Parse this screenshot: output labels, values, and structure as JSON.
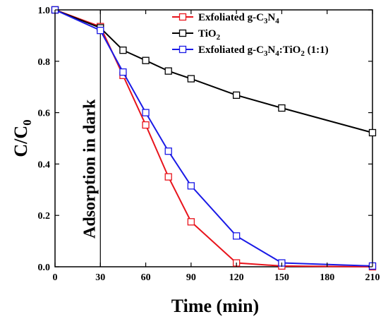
{
  "chart_data": {
    "type": "line",
    "xlabel": "Time (min)",
    "ylabel": "C/C",
    "ylabel_sub": "0",
    "xlim": [
      0,
      210
    ],
    "ylim": [
      0,
      1.0
    ],
    "xticks": [
      0,
      30,
      60,
      90,
      120,
      150,
      180,
      210
    ],
    "yticks": [
      0.0,
      0.2,
      0.4,
      0.6,
      0.8,
      1.0
    ],
    "xtick_labels": [
      "0",
      "30",
      "60",
      "90",
      "120",
      "150",
      "180",
      "210"
    ],
    "ytick_labels": [
      "0.0",
      "0.2",
      "0.4",
      "0.6",
      "0.8",
      "1.0"
    ],
    "grid": false,
    "legend_position": "top-right",
    "annotation": {
      "text": "Adsorption in dark",
      "x": 30
    },
    "series": [
      {
        "name_parts": [
          [
            "Exfoliated g-C",
            false
          ],
          [
            "3",
            true
          ],
          [
            "N",
            false
          ],
          [
            "4",
            true
          ]
        ],
        "color": "#e8141c",
        "x": [
          0,
          30,
          45,
          60,
          75,
          90,
          120,
          150,
          210
        ],
        "y": [
          1.0,
          0.935,
          0.745,
          0.552,
          0.35,
          0.175,
          0.015,
          0.003,
          0.0
        ]
      },
      {
        "name_parts": [
          [
            "TiO",
            false
          ],
          [
            "2",
            true
          ]
        ],
        "color": "#000000",
        "x": [
          0,
          30,
          45,
          60,
          75,
          90,
          120,
          150,
          210
        ],
        "y": [
          1.0,
          0.93,
          0.843,
          0.803,
          0.762,
          0.732,
          0.668,
          0.618,
          0.522
        ]
      },
      {
        "name_parts": [
          [
            "Exfoliated g-C",
            false
          ],
          [
            "3",
            true
          ],
          [
            "N",
            false
          ],
          [
            "4",
            true
          ],
          [
            ":TiO",
            false
          ],
          [
            "2",
            true
          ],
          [
            " (1:1)",
            false
          ]
        ],
        "color": "#1a1ae6",
        "x": [
          0,
          30,
          45,
          60,
          75,
          90,
          120,
          150,
          210
        ],
        "y": [
          1.0,
          0.92,
          0.758,
          0.6,
          0.45,
          0.315,
          0.12,
          0.015,
          0.003
        ]
      }
    ]
  }
}
